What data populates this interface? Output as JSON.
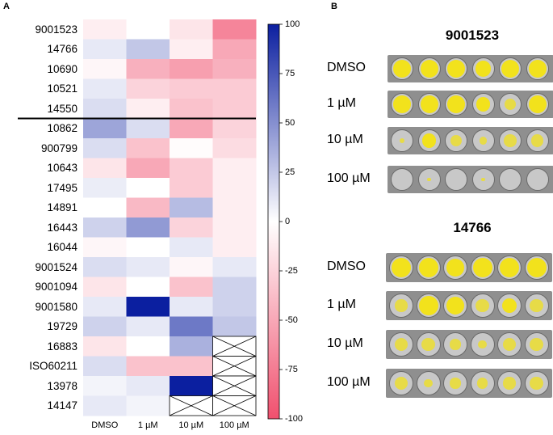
{
  "panel_a": {
    "label": "A",
    "rows": [
      "9001523",
      "14766",
      "10690",
      "10521",
      "14550",
      "10862",
      "900799",
      "10643",
      "17495",
      "14891",
      "16443",
      "16044",
      "9001524",
      "9001094",
      "9001580",
      "19729",
      "16883",
      "ISO60211",
      "13978",
      "14147"
    ],
    "columns": [
      "DMSO",
      "1 µM",
      "10 µM",
      "100 µM"
    ],
    "colorbar": {
      "ticks": [
        "100",
        "75",
        "50",
        "25",
        "0",
        "-25",
        "-50",
        "-75",
        "-100"
      ],
      "max_color": "#0b1fa0",
      "mid_color": "#ffffff",
      "min_color": "#f0506e"
    }
  },
  "chart_data": {
    "type": "heatmap",
    "title": "",
    "xlabel": "",
    "ylabel": "",
    "categories_x": [
      "DMSO",
      "1 µM",
      "10 µM",
      "100 µM"
    ],
    "categories_y": [
      "9001523",
      "14766",
      "10690",
      "10521",
      "14550",
      "10862",
      "900799",
      "10643",
      "17495",
      "14891",
      "16443",
      "16044",
      "9001524",
      "9001094",
      "9001580",
      "19729",
      "16883",
      "ISO60211",
      "13978",
      "14147"
    ],
    "value_range": [
      -100,
      100
    ],
    "values": [
      [
        -10,
        0,
        -15,
        -70
      ],
      [
        10,
        25,
        -10,
        -50
      ],
      [
        -5,
        -45,
        -55,
        -45
      ],
      [
        10,
        -25,
        -30,
        -30
      ],
      [
        15,
        -10,
        -35,
        -30
      ],
      [
        40,
        15,
        -50,
        -25
      ],
      [
        15,
        -35,
        -2,
        -20
      ],
      [
        -15,
        -50,
        -30,
        -10
      ],
      [
        8,
        0,
        -30,
        -10
      ],
      [
        0,
        -40,
        30,
        -10
      ],
      [
        20,
        45,
        -25,
        -10
      ],
      [
        -5,
        0,
        10,
        -10
      ],
      [
        15,
        10,
        -5,
        10
      ],
      [
        -15,
        0,
        -35,
        20
      ],
      [
        10,
        100,
        10,
        20
      ],
      [
        20,
        10,
        60,
        25
      ],
      [
        -15,
        0,
        35,
        null
      ],
      [
        15,
        -35,
        -35,
        null
      ],
      [
        5,
        10,
        100,
        null
      ],
      [
        10,
        5,
        null,
        null
      ]
    ],
    "missing_marker": "crossed cell",
    "separator_after_row": "14550"
  },
  "panel_b": {
    "label": "B",
    "groups": [
      {
        "title": "9001523",
        "rows": [
          {
            "label": "DMSO",
            "fills": [
              1,
              1,
              1,
              0.8,
              1,
              1
            ]
          },
          {
            "label": "1 µM",
            "fills": [
              1,
              1,
              1,
              0.6,
              0.4,
              1
            ]
          },
          {
            "label": "10 µM",
            "fills": [
              0.1,
              0.6,
              0.4,
              0.2,
              0.5,
              0.5
            ]
          },
          {
            "label": "100 µM",
            "fills": [
              0,
              0.05,
              0,
              0.05,
              0,
              0
            ]
          }
        ]
      },
      {
        "title": "14766",
        "rows": [
          {
            "label": "DMSO",
            "fills": [
              1,
              1,
              0.8,
              1,
              1,
              1
            ]
          },
          {
            "label": "1 µM",
            "fills": [
              0.4,
              1,
              0.9,
              0.5,
              0.6,
              0.5
            ]
          },
          {
            "label": "10 µM",
            "fills": [
              0.5,
              0.5,
              0.3,
              0.2,
              0.5,
              0.5
            ]
          },
          {
            "label": "100 µM",
            "fills": [
              0.5,
              0.2,
              0.3,
              0.3,
              0.4,
              0.5
            ]
          }
        ]
      }
    ],
    "well_color": "#f2e21c"
  }
}
